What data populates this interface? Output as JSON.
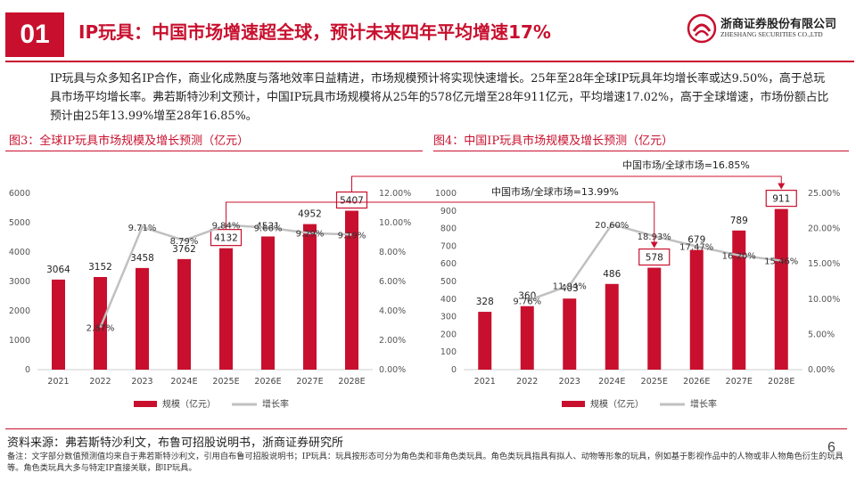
{
  "header": {
    "section_number": "01",
    "title": "IP玩具：中国市场增速超全球，预计未来四年平均增速17%",
    "logo_cn": "浙商证券股份有限公司",
    "logo_en": "ZHESHANG SECURITIES CO.,LTD"
  },
  "body": {
    "paragraph": "IP玩具与众多知名IP合作，商业化成熟度与落地效率日益精进，市场规模预计将实现快速增长。25年至28年全球IP玩具年均增长率或达9.50%，高于总玩具市场平均增长率。弗若斯特沙利文预计，中国IP玩具市场规模将从25年的578亿元增至28年911亿元，平均增速17.02%，高于全球增速，市场份额占比预计由25年13.99%增至28年16.85%。"
  },
  "figures": {
    "fig3_title": "图3：全球IP玩具市场规模及增长预测（亿元）",
    "fig4_title": "图4：中国IP玩具市场规模及增长预测（亿元）"
  },
  "annotations": {
    "top": "中国市场/全球市场=16.85%",
    "middle": "中国市场/全球市场=13.99%"
  },
  "legend": {
    "bar": "规模（亿元）",
    "line": "增长率"
  },
  "colors": {
    "accent": "#c8102e",
    "bar": "#c8102e",
    "line": "#c0c0c0"
  },
  "chart_data": [
    {
      "type": "bar",
      "categories": [
        "2021",
        "2022",
        "2023",
        "2024E",
        "2025E",
        "2026E",
        "2027E",
        "2028E"
      ],
      "series": [
        {
          "name": "规模（亿元）",
          "type": "bar",
          "axis": "left",
          "values": [
            3064,
            3152,
            3458,
            3762,
            4132,
            4531,
            4952,
            5407
          ],
          "labels": [
            "3064",
            "3152",
            "3458",
            "3762",
            "4132",
            "4531",
            "4952",
            "5407"
          ]
        },
        {
          "name": "增长率",
          "type": "line",
          "axis": "right",
          "values": [
            null,
            2.87,
            9.71,
            8.79,
            9.84,
            9.66,
            9.29,
            9.19
          ],
          "labels": [
            "",
            "2.87%",
            "9.71%",
            "8.79%",
            "9.84%",
            "9.66%",
            "9.29%",
            "9.19%"
          ]
        }
      ],
      "ylim": [
        0,
        6000
      ],
      "yticks": [
        "0",
        "1000",
        "2000",
        "3000",
        "4000",
        "5000",
        "6000"
      ],
      "y2lim": [
        0,
        12
      ],
      "y2ticks": [
        "0.00%",
        "2.00%",
        "4.00%",
        "6.00%",
        "8.00%",
        "10.00%",
        "12.00%"
      ],
      "highlighted": [
        "4132",
        "5407"
      ]
    },
    {
      "type": "bar",
      "categories": [
        "2021",
        "2022",
        "2023",
        "2024E",
        "2025E",
        "2026E",
        "2027E",
        "2028E"
      ],
      "series": [
        {
          "name": "规模（亿元）",
          "type": "bar",
          "axis": "left",
          "values": [
            328,
            360,
            403,
            486,
            578,
            679,
            789,
            911
          ],
          "labels": [
            "328",
            "360",
            "403",
            "486",
            "578",
            "679",
            "789",
            "911"
          ]
        },
        {
          "name": "增长率",
          "type": "line",
          "axis": "right",
          "values": [
            null,
            9.76,
            11.94,
            20.6,
            18.93,
            17.47,
            16.2,
            15.46
          ],
          "labels": [
            "",
            "9.76%",
            "11.94%",
            "20.60%",
            "18.93%",
            "17.47%",
            "16.20%",
            "15.46%"
          ]
        }
      ],
      "ylim": [
        0,
        1000
      ],
      "yticks": [
        "0",
        "100",
        "200",
        "300",
        "400",
        "500",
        "600",
        "700",
        "800",
        "900",
        "1000"
      ],
      "y2lim": [
        0,
        25
      ],
      "y2ticks": [
        "0.00%",
        "5.00%",
        "10.00%",
        "15.00%",
        "20.00%",
        "25.00%"
      ],
      "highlighted": [
        "578",
        "911"
      ]
    }
  ],
  "footer": {
    "source": "资料来源：弗若斯特沙利文，布鲁可招股说明书，浙商证券研究所",
    "notes": "备注：文字部分数值预测值均来自于弗若斯特沙利文，引用自布鲁可招股说明书；IP玩具：玩具按形态可分为角色类和非角色类玩具。角色类玩具指具有拟人、动物等形象的玩具，例如基于影视作品中的人物或非人物角色衍生的玩具等。角色类玩具大多与特定IP直接关联，即IP玩具。",
    "page_number": "6"
  }
}
